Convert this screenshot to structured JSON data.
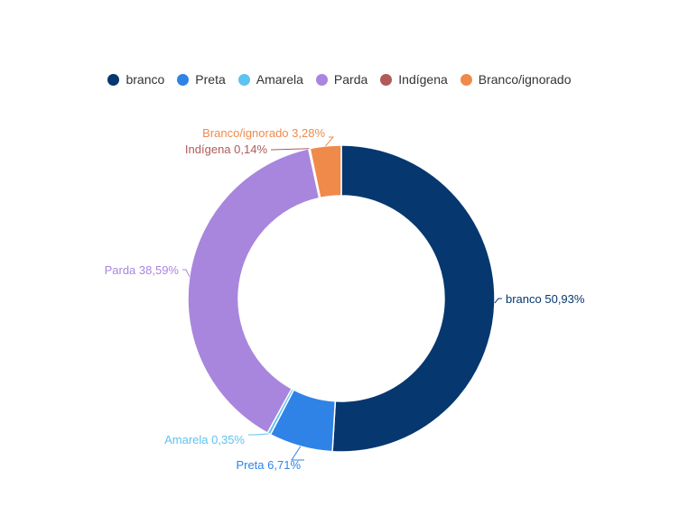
{
  "chart_data": {
    "type": "pie",
    "legend_position": "top",
    "slices": [
      {
        "name": "branco",
        "value": 50.93,
        "label": "branco 50,93%",
        "color": "#06376F"
      },
      {
        "name": "Preta",
        "value": 6.71,
        "label": "Preta 6,71%",
        "color": "#2F83E6"
      },
      {
        "name": "Amarela",
        "value": 0.35,
        "label": "Amarela 0,35%",
        "color": "#5DC3EF"
      },
      {
        "name": "Parda",
        "value": 38.59,
        "label": "Parda 38,59%",
        "color": "#A886DD"
      },
      {
        "name": "Indígena",
        "value": 0.14,
        "label": "Indígena 0,14%",
        "color": "#B05A5A"
      },
      {
        "name": "Branco/ignorado",
        "value": 3.28,
        "label": "Branco/ignorado 3,28%",
        "color": "#F08A4B"
      }
    ]
  }
}
